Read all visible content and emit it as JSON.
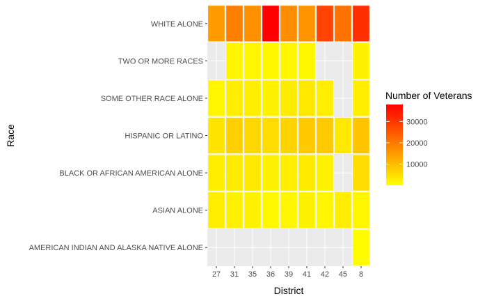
{
  "chart_data": {
    "type": "heatmap",
    "xlabel": "District",
    "ylabel": "Race",
    "x_categories": [
      "27",
      "31",
      "35",
      "36",
      "39",
      "41",
      "42",
      "45",
      "8"
    ],
    "y_categories": [
      "WHITE ALONE",
      "TWO OR MORE RACES",
      "SOME OTHER RACE ALONE",
      "HISPANIC OR LATINO",
      "BLACK OR AFRICAN AMERICAN ALONE",
      "ASIAN ALONE",
      "AMERICAN INDIAN AND ALASKA NATIVE ALONE"
    ],
    "cells": [
      {
        "race": "WHITE ALONE",
        "district": "27",
        "value": 15000
      },
      {
        "race": "WHITE ALONE",
        "district": "31",
        "value": 19000
      },
      {
        "race": "WHITE ALONE",
        "district": "35",
        "value": 16500
      },
      {
        "race": "WHITE ALONE",
        "district": "36",
        "value": 38000
      },
      {
        "race": "WHITE ALONE",
        "district": "39",
        "value": 17000
      },
      {
        "race": "WHITE ALONE",
        "district": "41",
        "value": 16000
      },
      {
        "race": "WHITE ALONE",
        "district": "42",
        "value": 28000
      },
      {
        "race": "WHITE ALONE",
        "district": "45",
        "value": 21000
      },
      {
        "race": "WHITE ALONE",
        "district": "8",
        "value": 31000
      },
      {
        "race": "TWO OR MORE RACES",
        "district": "31",
        "value": 1500
      },
      {
        "race": "TWO OR MORE RACES",
        "district": "35",
        "value": 1500
      },
      {
        "race": "TWO OR MORE RACES",
        "district": "36",
        "value": 1200
      },
      {
        "race": "TWO OR MORE RACES",
        "district": "39",
        "value": 1500
      },
      {
        "race": "TWO OR MORE RACES",
        "district": "41",
        "value": 1300
      },
      {
        "race": "TWO OR MORE RACES",
        "district": "8",
        "value": 2000
      },
      {
        "race": "SOME OTHER RACE ALONE",
        "district": "27",
        "value": 1500
      },
      {
        "race": "SOME OTHER RACE ALONE",
        "district": "31",
        "value": 2500
      },
      {
        "race": "SOME OTHER RACE ALONE",
        "district": "35",
        "value": 2500
      },
      {
        "race": "SOME OTHER RACE ALONE",
        "district": "36",
        "value": 2000
      },
      {
        "race": "SOME OTHER RACE ALONE",
        "district": "39",
        "value": 3000
      },
      {
        "race": "SOME OTHER RACE ALONE",
        "district": "41",
        "value": 3500
      },
      {
        "race": "SOME OTHER RACE ALONE",
        "district": "42",
        "value": 2500
      },
      {
        "race": "SOME OTHER RACE ALONE",
        "district": "8",
        "value": 2500
      },
      {
        "race": "HISPANIC OR LATINO",
        "district": "27",
        "value": 4000
      },
      {
        "race": "HISPANIC OR LATINO",
        "district": "31",
        "value": 7000
      },
      {
        "race": "HISPANIC OR LATINO",
        "district": "35",
        "value": 6000
      },
      {
        "race": "HISPANIC OR LATINO",
        "district": "36",
        "value": 5000
      },
      {
        "race": "HISPANIC OR LATINO",
        "district": "39",
        "value": 6500
      },
      {
        "race": "HISPANIC OR LATINO",
        "district": "41",
        "value": 8000
      },
      {
        "race": "HISPANIC OR LATINO",
        "district": "42",
        "value": 8000
      },
      {
        "race": "HISPANIC OR LATINO",
        "district": "45",
        "value": 3500
      },
      {
        "race": "HISPANIC OR LATINO",
        "district": "8",
        "value": 8500
      },
      {
        "race": "BLACK OR AFRICAN AMERICAN ALONE",
        "district": "27",
        "value": 2500
      },
      {
        "race": "BLACK OR AFRICAN AMERICAN ALONE",
        "district": "31",
        "value": 3000
      },
      {
        "race": "BLACK OR AFRICAN AMERICAN ALONE",
        "district": "35",
        "value": 3500
      },
      {
        "race": "BLACK OR AFRICAN AMERICAN ALONE",
        "district": "36",
        "value": 2000
      },
      {
        "race": "BLACK OR AFRICAN AMERICAN ALONE",
        "district": "39",
        "value": 2500
      },
      {
        "race": "BLACK OR AFRICAN AMERICAN ALONE",
        "district": "41",
        "value": 3000
      },
      {
        "race": "BLACK OR AFRICAN AMERICAN ALONE",
        "district": "42",
        "value": 2000
      },
      {
        "race": "BLACK OR AFRICAN AMERICAN ALONE",
        "district": "8",
        "value": 5000
      },
      {
        "race": "ASIAN ALONE",
        "district": "27",
        "value": 2500
      },
      {
        "race": "ASIAN ALONE",
        "district": "31",
        "value": 2000
      },
      {
        "race": "ASIAN ALONE",
        "district": "35",
        "value": 2000
      },
      {
        "race": "ASIAN ALONE",
        "district": "36",
        "value": 1000
      },
      {
        "race": "ASIAN ALONE",
        "district": "39",
        "value": 1500
      },
      {
        "race": "ASIAN ALONE",
        "district": "41",
        "value": 2000
      },
      {
        "race": "ASIAN ALONE",
        "district": "42",
        "value": 1500
      },
      {
        "race": "ASIAN ALONE",
        "district": "45",
        "value": 2500
      },
      {
        "race": "ASIAN ALONE",
        "district": "8",
        "value": 1500
      },
      {
        "race": "AMERICAN INDIAN AND ALASKA NATIVE ALONE",
        "district": "8",
        "value": 500
      }
    ],
    "legend": {
      "title": "Number of Veterans",
      "breaks": [
        10000,
        20000,
        30000
      ],
      "break_labels": [
        "10000",
        "20000",
        "30000"
      ],
      "min": 0,
      "max": 38000,
      "low_color": "#FFFF00",
      "high_color": "#FF0000",
      "placement": "right"
    },
    "panel_background": "#EBEBEB",
    "grid": true
  }
}
